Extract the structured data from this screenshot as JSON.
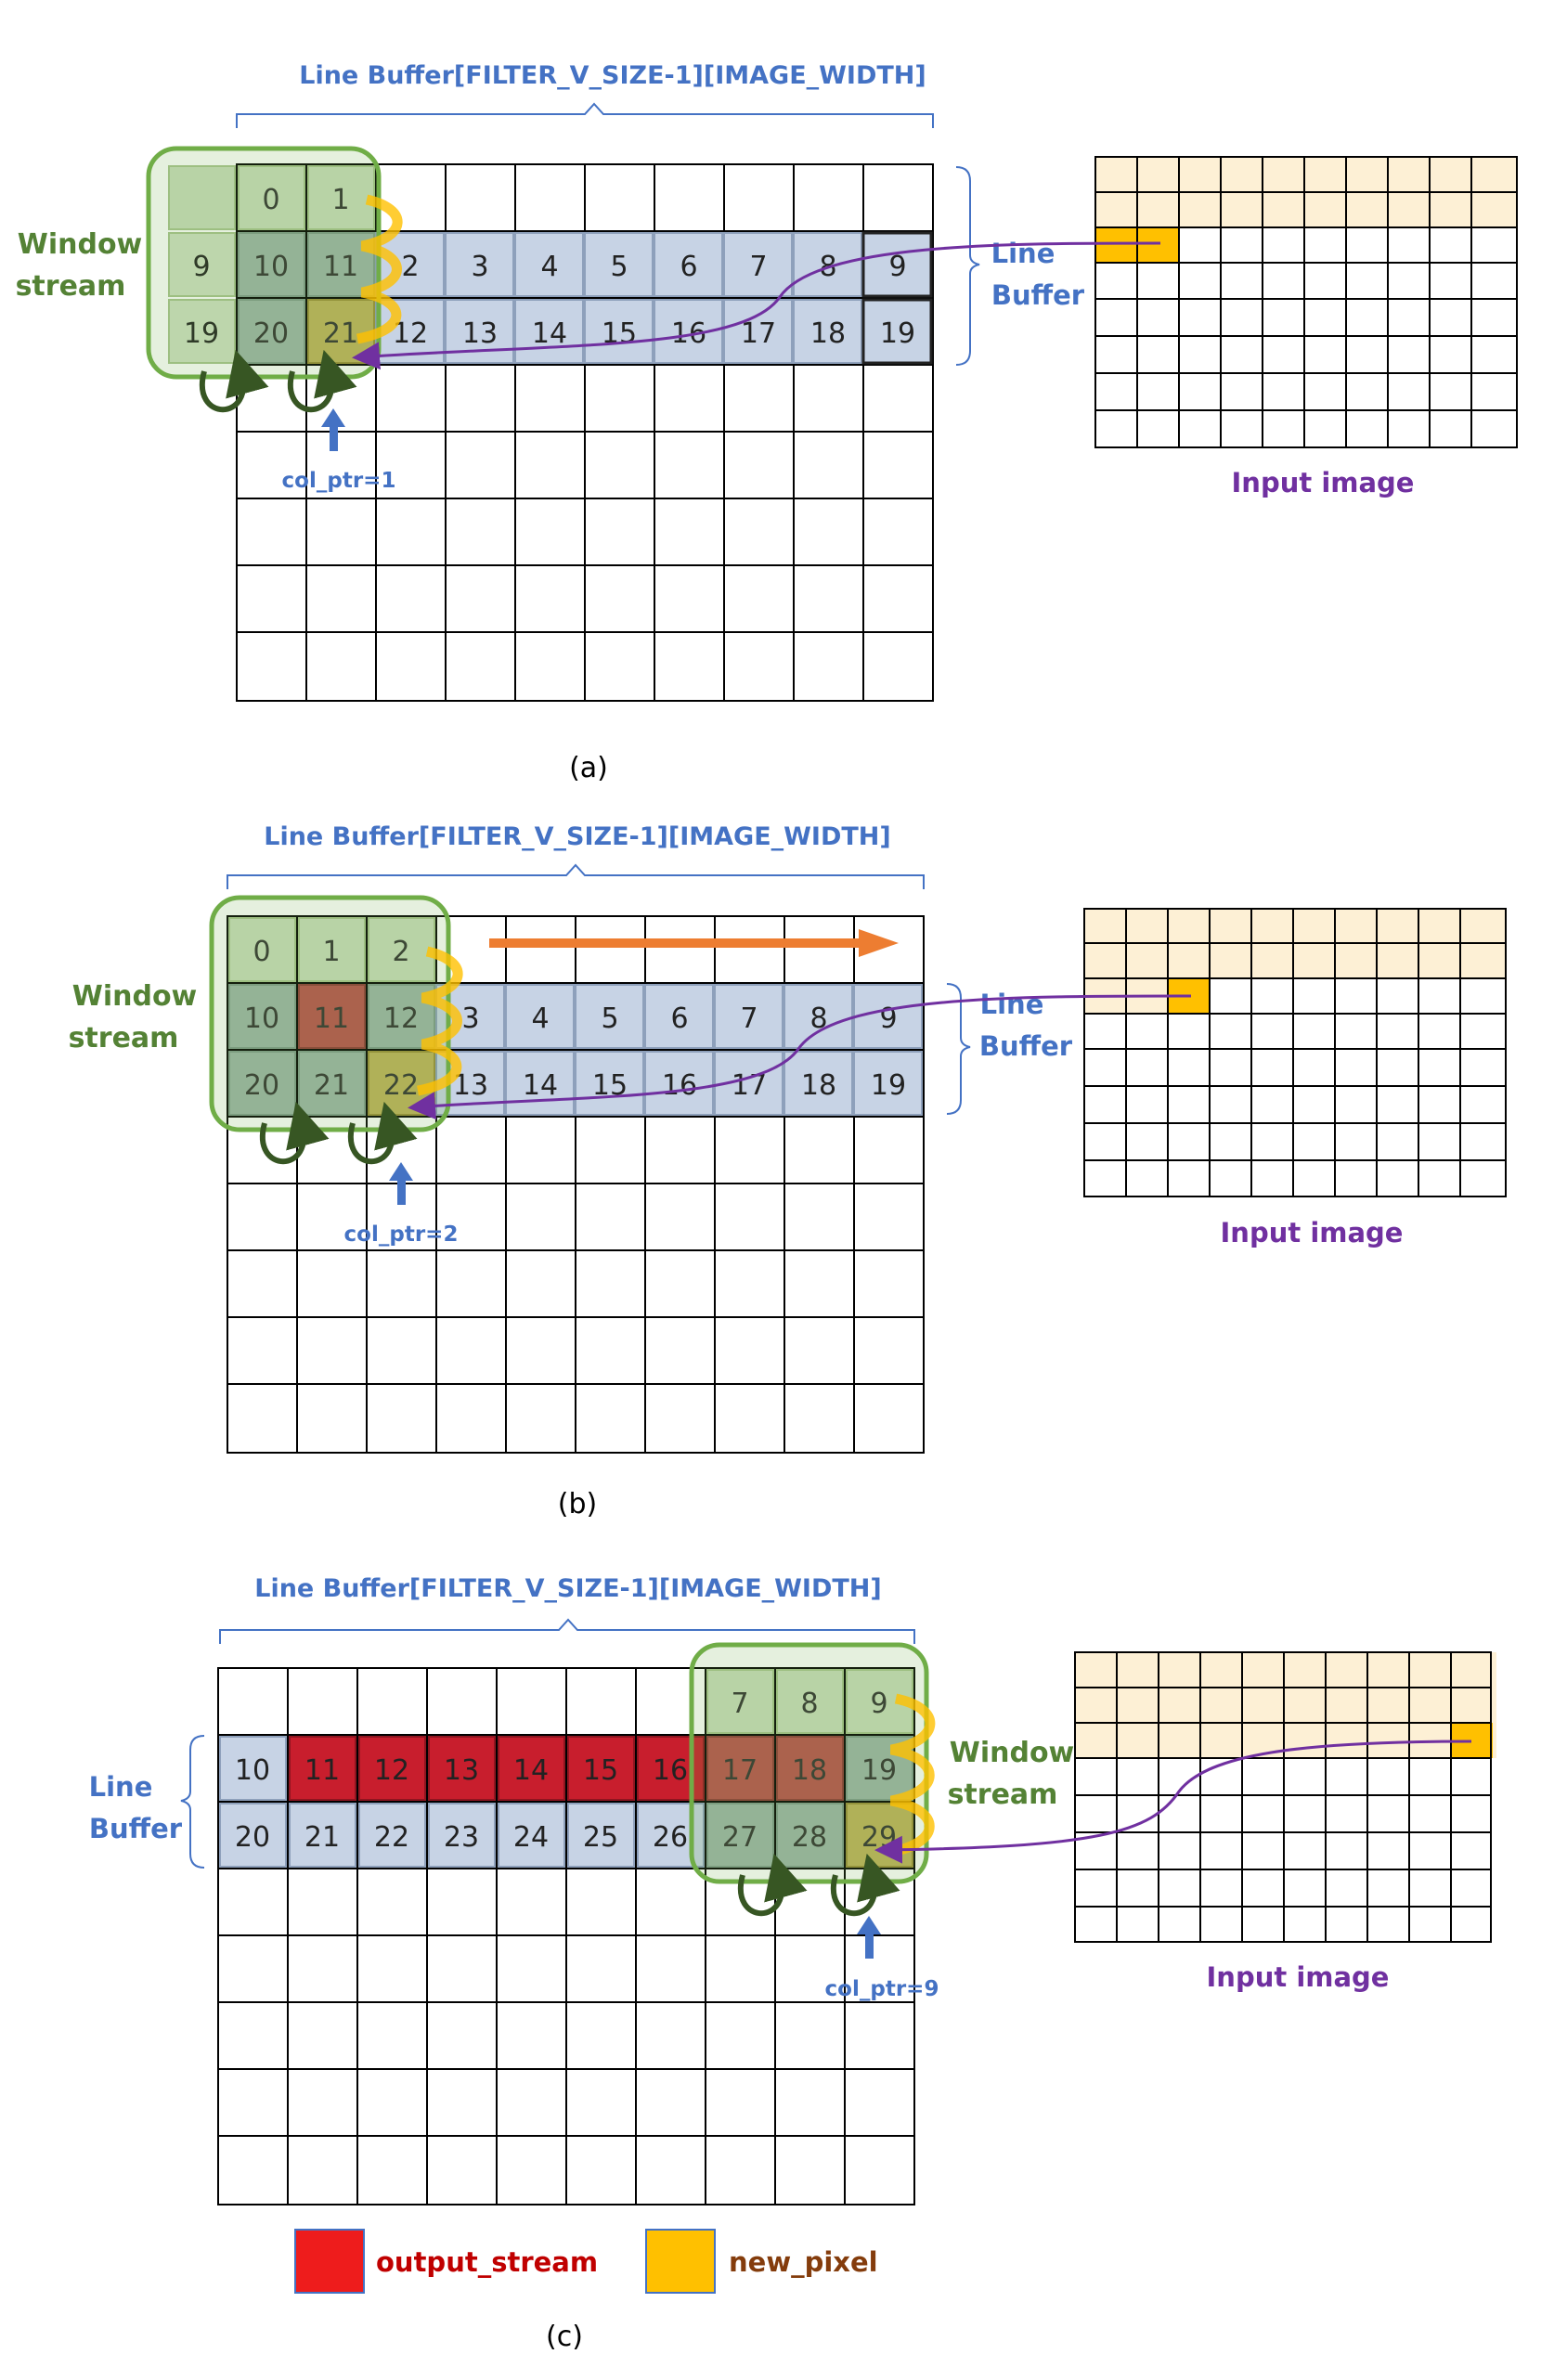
{
  "panels": [
    {
      "id": "a",
      "caption": "(a)",
      "buffer_title": "Line Buffer[FILTER_V_SIZE-1][IMAGE_WIDTH]",
      "window_label": [
        "Window",
        "stream"
      ],
      "line_buffer_label": [
        "Line",
        "Buffer"
      ],
      "col_ptr_label": "col_ptr=1",
      "input_image_label": "Input image",
      "window_cells": [
        [
          "",
          "0",
          "1"
        ],
        [
          "9",
          "10",
          "11"
        ],
        [
          "19",
          "20",
          "21"
        ]
      ],
      "line_buffer_row1": [
        "2",
        "3",
        "4",
        "5",
        "6",
        "7",
        "8",
        "9"
      ],
      "line_buffer_row2": [
        "12",
        "13",
        "14",
        "15",
        "16",
        "17",
        "18",
        "19"
      ]
    },
    {
      "id": "b",
      "caption": "(b)",
      "buffer_title": "Line Buffer[FILTER_V_SIZE-1][IMAGE_WIDTH]",
      "window_label": [
        "Window",
        "stream"
      ],
      "line_buffer_label": [
        "Line",
        "Buffer"
      ],
      "col_ptr_label": "col_ptr=2",
      "input_image_label": "Input image",
      "window_cells": [
        [
          "0",
          "1",
          "2"
        ],
        [
          "10",
          "11",
          "12"
        ],
        [
          "20",
          "21",
          "22"
        ]
      ],
      "line_buffer_row1": [
        "3",
        "4",
        "5",
        "6",
        "7",
        "8",
        "9"
      ],
      "line_buffer_row2": [
        "13",
        "14",
        "15",
        "16",
        "17",
        "18",
        "19"
      ]
    },
    {
      "id": "c",
      "caption": "(c)",
      "buffer_title": "Line Buffer[FILTER_V_SIZE-1][IMAGE_WIDTH]",
      "window_label": [
        "Window",
        "stream"
      ],
      "line_buffer_label": [
        "Line",
        "Buffer"
      ],
      "col_ptr_label": "col_ptr=9",
      "input_image_label": "Input image",
      "window_cells": [
        [
          "7",
          "8",
          "9"
        ],
        [
          "17",
          "18",
          "19"
        ],
        [
          "27",
          "28",
          "29"
        ]
      ],
      "line_buffer_row1": [
        "10",
        "11",
        "12",
        "13",
        "14",
        "15",
        "16"
      ],
      "line_buffer_row2": [
        "20",
        "21",
        "22",
        "23",
        "24",
        "25",
        "26"
      ]
    }
  ],
  "legend": [
    {
      "label": "output_stream",
      "color": "#ee1c1c"
    },
    {
      "label": "new_pixel",
      "color": "#ffc000"
    }
  ],
  "colors": {
    "cell_blue": "#c7d3e5",
    "window_green": "#70ad47",
    "title_blue": "#4472c4",
    "label_green": "#548235",
    "purple": "#7030a0",
    "output_red": "#c81e2d",
    "new_pixel": "#ffc000",
    "input_rows": "#fdf0d5",
    "arrow_orange": "#ed7d31"
  }
}
